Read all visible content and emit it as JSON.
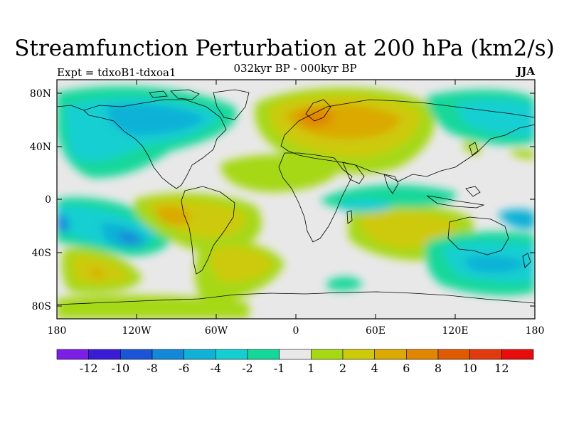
{
  "title": "Streamfunction Perturbation at 200 hPa (km2/s)",
  "subtitle": "032kyr BP - 000kyr BP",
  "left_label": "Expt = tdxoB1-tdxoa1",
  "right_label": "JJA",
  "axes": {
    "lat_ticks": [
      "80N",
      "40N",
      "0",
      "40S",
      "80S"
    ],
    "lon_ticks": [
      "180",
      "120W",
      "60W",
      "0",
      "60E",
      "120E",
      "180"
    ]
  },
  "colorbar": {
    "labels": [
      "-12",
      "-10",
      "-8",
      "-6",
      "-4",
      "-2",
      "-1",
      "1",
      "2",
      "4",
      "6",
      "8",
      "10",
      "12"
    ],
    "colors": [
      "#7b1ee6",
      "#3a1bd6",
      "#1a55d8",
      "#1488d8",
      "#0fb1d6",
      "#14cfd2",
      "#14d89a",
      "#e8e8e8",
      "#a6d814",
      "#cdca0a",
      "#dba900",
      "#e28600",
      "#e05a00",
      "#e03a0e",
      "#e80c0c"
    ]
  },
  "colors": {
    "background_field": "#e8e8e8",
    "coastline": "#000000"
  }
}
